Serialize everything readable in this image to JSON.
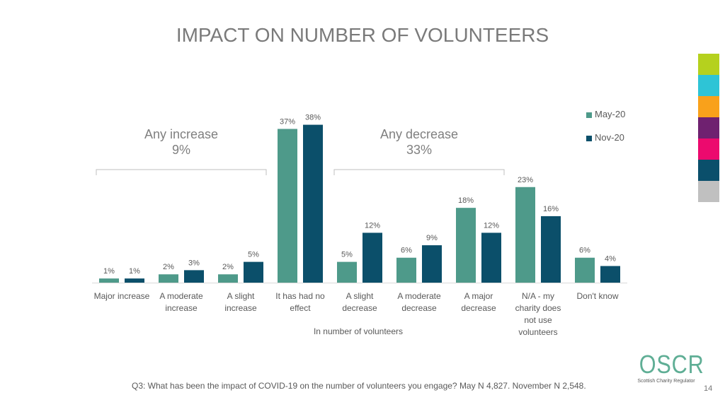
{
  "slide": {
    "title": "IMPACT ON NUMBER OF VOLUNTEERS",
    "footnote": "Q3: What has been the impact of COVID-19 on the number of volunteers you engage? May N 4,827. November N 2,548.",
    "page_number": "14",
    "logo": {
      "main": "OSCR",
      "sub": "Scottish Charity Regulator"
    },
    "color_swatches": [
      "#b5d11e",
      "#2ec4d6",
      "#f9a11b",
      "#6f2170",
      "#ec0a6e",
      "#0a4f6b",
      "#c0c0c0"
    ]
  },
  "chart_data": {
    "type": "bar",
    "title": "IMPACT ON NUMBER OF VOLUNTEERS",
    "xlabel": "In number of volunteers",
    "ylabel": "",
    "ylim": [
      0,
      40
    ],
    "grid": false,
    "legend_position": "top-right",
    "categories": [
      [
        "Major increase"
      ],
      [
        "A moderate",
        "increase"
      ],
      [
        "A slight",
        "increase"
      ],
      [
        "It has had no",
        "effect"
      ],
      [
        "A slight",
        "decrease"
      ],
      [
        "A moderate",
        "decrease"
      ],
      [
        "A major",
        "decrease"
      ],
      [
        "N/A - my",
        "charity does",
        "not use",
        "volunteers"
      ],
      [
        "Don't know"
      ]
    ],
    "series": [
      {
        "name": "May-20",
        "color": "#4e9a8a",
        "values": [
          1,
          2,
          2,
          37,
          5,
          6,
          18,
          23,
          6
        ],
        "labels": [
          "1%",
          "2%",
          "2%",
          "37%",
          "5%",
          "6%",
          "18%",
          "23%",
          "6%"
        ]
      },
      {
        "name": "Nov-20",
        "color": "#0b4f6a",
        "values": [
          1,
          3,
          5,
          38,
          12,
          9,
          12,
          16,
          4
        ],
        "labels": [
          "1%",
          "3%",
          "5%",
          "38%",
          "12%",
          "9%",
          "12%",
          "16%",
          "4%"
        ]
      }
    ],
    "annotations": [
      {
        "label": "Any increase",
        "value": "9%",
        "spans_categories": [
          0,
          2
        ]
      },
      {
        "label": "Any decrease",
        "value": "33%",
        "spans_categories": [
          4,
          6
        ]
      }
    ]
  }
}
